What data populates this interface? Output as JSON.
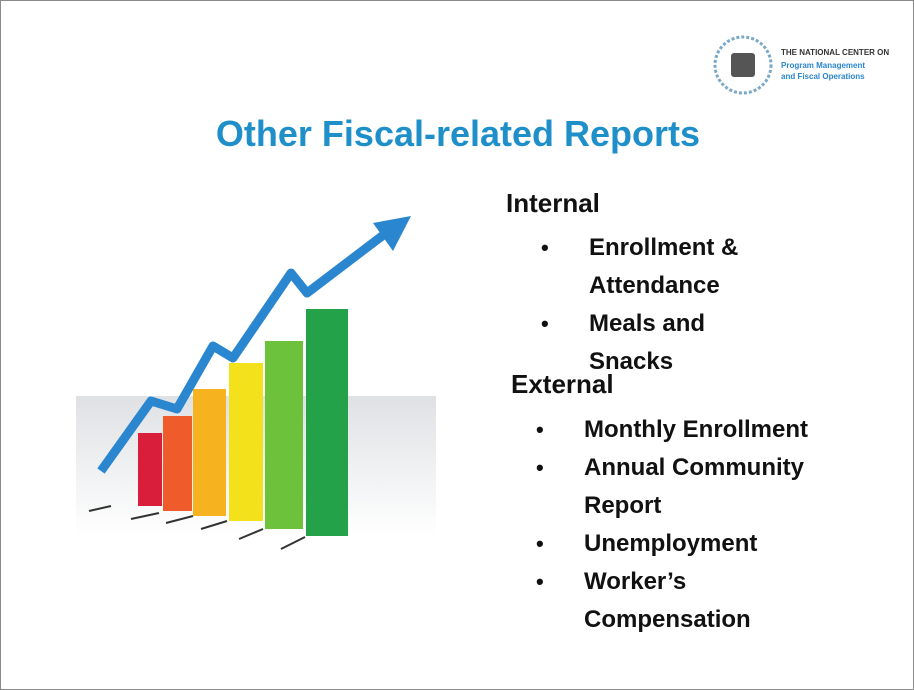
{
  "logo": {
    "line1": "THE NATIONAL CENTER ON",
    "line2": "Program Management",
    "line3": "and Fiscal Operations"
  },
  "title": "Other Fiscal-related Reports",
  "sections": [
    {
      "heading": "Internal",
      "items": [
        "Enrollment & Attendance",
        "Meals and Snacks"
      ]
    },
    {
      "heading": "External",
      "items": [
        "Monthly Enrollment",
        "Annual Community Report",
        "Unemployment",
        "Worker’s Compensation"
      ]
    }
  ]
}
